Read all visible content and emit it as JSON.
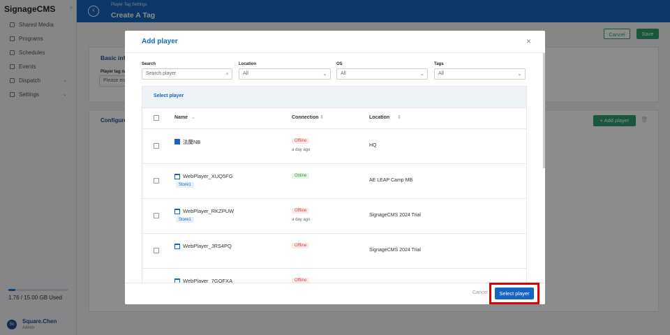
{
  "sidebar": {
    "brand": "SignageCMS",
    "nav": [
      "Shared Media",
      "Programs",
      "Schedules",
      "Events",
      "Dispatch",
      "Settings"
    ],
    "storage": "1.76 / 15.00 GB Used",
    "user": {
      "avatar": "Sc",
      "name": "Square.Chen",
      "role": "Admin"
    }
  },
  "header": {
    "breadcrumb": "Player Tag Settings",
    "title": "Create A Tag"
  },
  "page": {
    "buttons": [
      "Cancel",
      "Save"
    ],
    "basic_info": {
      "title": "Basic info",
      "field_label": "Player tag name",
      "placeholder": "Please enter"
    },
    "configured": {
      "title": "Configured",
      "add_button": "Add player"
    }
  },
  "modal": {
    "title": "Add player",
    "filters": [
      {
        "label": "Search",
        "placeholder": "Search player"
      },
      {
        "label": "Location",
        "value": "All"
      },
      {
        "label": "OS",
        "value": "All"
      },
      {
        "label": "Tags",
        "value": "All"
      }
    ],
    "panel_title": "Select player",
    "columns": [
      "Name",
      "Connection",
      "Location"
    ],
    "rows": [
      {
        "name": "法蘭NB",
        "status": "Offline",
        "last_seen": "a day ago",
        "location": "HQ"
      },
      {
        "name": "WebPlayer_XUQ5FG",
        "tags": [
          "Store1"
        ],
        "status": "Online",
        "location": "AE LEAP Camp MB"
      },
      {
        "name": "WebPlayer_RKZPUW",
        "tags": [
          "Store1"
        ],
        "status": "Offline",
        "last_seen": "a day ago",
        "location": "SignageCMS 2024 Trial"
      },
      {
        "name": "WebPlayer_JRS4PQ",
        "status": "Offline",
        "location": "SignageCMS 2024 Trial"
      },
      {
        "name": "WebPlayer_7GOFXA",
        "status": "Offline"
      }
    ],
    "buttons": {
      "cancel": "Cancel",
      "confirm": "Select player"
    }
  }
}
